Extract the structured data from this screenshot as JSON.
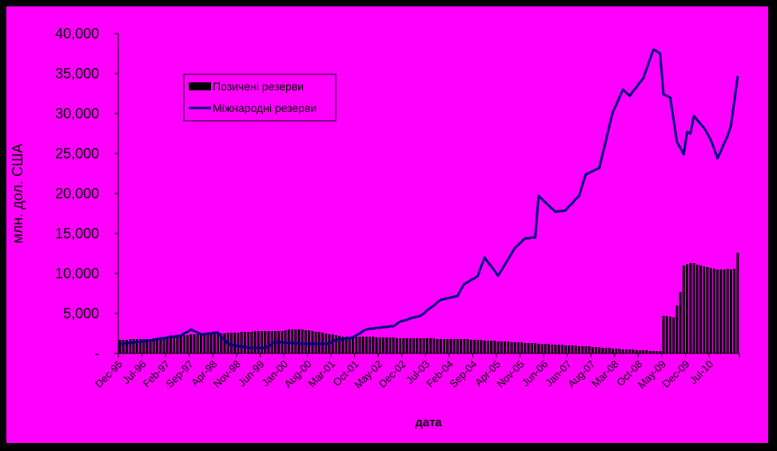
{
  "chart_data": {
    "type": "bar-line",
    "y_label": "млн. дол. США",
    "x_label": "дата",
    "legend": "top-left",
    "background": "#ff00ff",
    "categories": [
      "Dec-95",
      null,
      null,
      null,
      null,
      null,
      null,
      "Jul-96",
      null,
      null,
      null,
      null,
      null,
      null,
      "Feb-97",
      null,
      null,
      null,
      null,
      null,
      null,
      "Sep-97",
      null,
      null,
      null,
      null,
      null,
      null,
      "Apr-98",
      null,
      null,
      null,
      null,
      null,
      null,
      "Nov-98",
      null,
      null,
      null,
      null,
      null,
      null,
      "Jun-99",
      null,
      null,
      null,
      null,
      null,
      null,
      "Jan-00",
      null,
      null,
      null,
      null,
      null,
      null,
      "Aug-00",
      null,
      null,
      null,
      null,
      null,
      null,
      "Mar-01",
      null,
      null,
      null,
      null,
      null,
      null,
      "Oct-01",
      null,
      null,
      null,
      null,
      null,
      null,
      "May-02",
      null,
      null,
      null,
      null,
      null,
      null,
      "Dec-02",
      null,
      null,
      null,
      null,
      null,
      null,
      "Jul-03",
      null,
      null,
      null,
      null,
      null,
      null,
      "Feb-04",
      null,
      null,
      null,
      null,
      null,
      null,
      "Sep-04",
      null,
      null,
      null,
      null,
      null,
      null,
      "Apr-05",
      null,
      null,
      null,
      null,
      null,
      null,
      "Nov-05",
      null,
      null,
      null,
      null,
      null,
      null,
      "Jun-06",
      null,
      null,
      null,
      null,
      null,
      null,
      "Jan-07",
      null,
      null,
      null,
      null,
      null,
      null,
      "Aug-07",
      null,
      null,
      null,
      null,
      null,
      null,
      "Mar-08",
      null,
      null,
      null,
      null,
      null,
      null,
      "Oct-08",
      null,
      null,
      null,
      null,
      null,
      null,
      "May-09",
      null,
      null,
      null,
      null,
      null,
      null,
      "Dec-09",
      null,
      null,
      null,
      null,
      null,
      null,
      "Jul-10",
      null,
      null,
      null,
      null,
      null,
      null,
      null,
      null
    ],
    "ylim": [
      0,
      40000
    ],
    "yticks": [
      {
        "value": 0,
        "label": "-"
      },
      {
        "value": 5000,
        "label": "5,000"
      },
      {
        "value": 10000,
        "label": "10,000"
      },
      {
        "value": 15000,
        "label": "15,000"
      },
      {
        "value": 20000,
        "label": "20,000"
      },
      {
        "value": 25000,
        "label": "25,000"
      },
      {
        "value": 30000,
        "label": "30,000"
      },
      {
        "value": 35000,
        "label": "35,000"
      },
      {
        "value": 40000,
        "label": "40,000"
      }
    ],
    "series": [
      {
        "name": "Позичені резерви",
        "type": "bar",
        "color": "#000000",
        "values": [
          1700,
          1700,
          1700,
          1800,
          1800,
          1800,
          1800,
          1800,
          1800,
          1800,
          1900,
          1900,
          1900,
          2000,
          2000,
          2100,
          2200,
          2200,
          2300,
          2300,
          2300,
          2400,
          2400,
          2400,
          2400,
          2400,
          2400,
          2500,
          2500,
          2500,
          2500,
          2500,
          2600,
          2600,
          2600,
          2600,
          2700,
          2700,
          2700,
          2700,
          2800,
          2800,
          2800,
          2800,
          2800,
          2800,
          2800,
          2800,
          2800,
          2900,
          3000,
          3000,
          3000,
          3000,
          3000,
          2900,
          2900,
          2800,
          2700,
          2700,
          2600,
          2500,
          2400,
          2400,
          2300,
          2200,
          2100,
          2100,
          2100,
          2100,
          2100,
          2100,
          2100,
          2100,
          2100,
          2100,
          2000,
          2000,
          2000,
          2000,
          2000,
          2000,
          1900,
          1900,
          1900,
          1900,
          1900,
          1900,
          1900,
          1900,
          1900,
          1900,
          1900,
          1900,
          1800,
          1800,
          1800,
          1800,
          1800,
          1800,
          1800,
          1800,
          1800,
          1800,
          1700,
          1700,
          1700,
          1700,
          1600,
          1600,
          1600,
          1600,
          1500,
          1500,
          1500,
          1500,
          1400,
          1400,
          1400,
          1400,
          1300,
          1300,
          1300,
          1300,
          1200,
          1200,
          1200,
          1200,
          1100,
          1100,
          1100,
          1100,
          1000,
          1000,
          1000,
          1000,
          900,
          900,
          900,
          900,
          800,
          800,
          800,
          700,
          700,
          700,
          600,
          600,
          600,
          500,
          500,
          500,
          500,
          400,
          400,
          400,
          400,
          300,
          300,
          300,
          300,
          4700,
          4700,
          4600,
          4500,
          6000,
          7700,
          11000,
          11200,
          11300,
          11300,
          11100,
          11000,
          10900,
          10800,
          10700,
          10600,
          10500,
          10500,
          10500,
          10600,
          10500,
          10600,
          12600
        ]
      },
      {
        "name": "Міжнародні резерви",
        "type": "line",
        "color": "#000080",
        "values": [
          1200,
          1200,
          1300,
          1300,
          1400,
          1400,
          1500,
          1500,
          1600,
          1600,
          1700,
          1800,
          1900,
          1900,
          2000,
          2100,
          2100,
          2200,
          2200,
          2500,
          2700,
          3000,
          2800,
          2600,
          2400,
          2400,
          2500,
          2500,
          2600,
          2600,
          2100,
          1700,
          1200,
          1100,
          1000,
          900,
          900,
          800,
          700,
          700,
          700,
          700,
          700,
          700,
          900,
          1200,
          1400,
          1400,
          1400,
          1300,
          1300,
          1300,
          1300,
          1200,
          1200,
          1200,
          1200,
          1200,
          1200,
          1200,
          1200,
          1200,
          1200,
          1500,
          1700,
          1800,
          1800,
          1900,
          1900,
          2000,
          2300,
          2500,
          2800,
          3000,
          3100,
          3100,
          3200,
          3200,
          3300,
          3300,
          3400,
          3400,
          3700,
          4000,
          4100,
          4200,
          4400,
          4500,
          4600,
          4700,
          5000,
          5400,
          5700,
          6000,
          6400,
          6700,
          6800,
          6900,
          7000,
          7100,
          7200,
          8000,
          8700,
          8900,
          9200,
          9400,
          9700,
          10900,
          12000,
          11400,
          10900,
          10300,
          9700,
          10400,
          11100,
          11800,
          12500,
          13200,
          13600,
          14000,
          14400,
          14400,
          14500,
          14500,
          19700,
          19300,
          18900,
          18500,
          18100,
          17700,
          17800,
          17800,
          17900,
          18400,
          18800,
          19300,
          19700,
          21100,
          22400,
          22600,
          22800,
          23000,
          23200,
          25000,
          26700,
          28500,
          30200,
          31100,
          32100,
          33000,
          32600,
          32200,
          32800,
          33300,
          33900,
          34400,
          35600,
          36800,
          38000,
          37800,
          37500,
          32400,
          32200,
          32000,
          29200,
          26400,
          25700,
          24900,
          27700,
          27500,
          29700,
          29200,
          28700,
          28200,
          27500,
          26700,
          25600,
          24400,
          25300,
          26300,
          27200,
          28500,
          31600,
          34700
        ]
      }
    ]
  }
}
